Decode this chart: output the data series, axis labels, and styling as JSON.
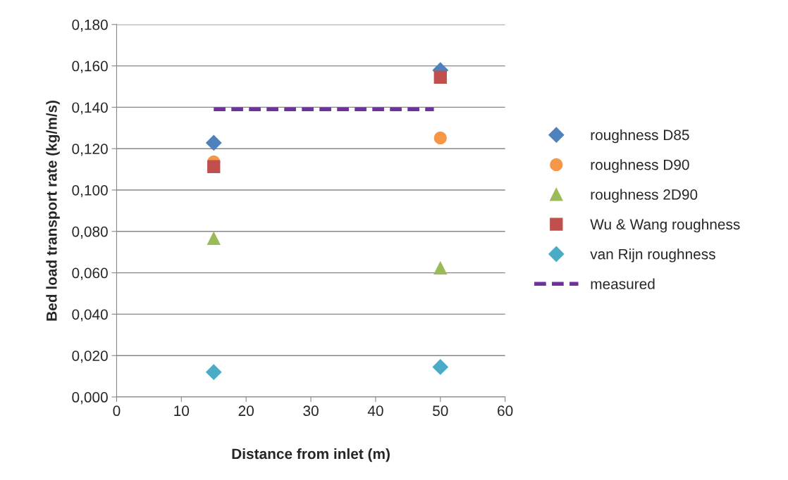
{
  "chart_data": {
    "type": "scatter",
    "xlabel": "Distance from inlet (m)",
    "ylabel": "Bed load transport rate (kg/m/s)",
    "xlim": [
      0,
      60
    ],
    "xticks": [
      0,
      10,
      20,
      30,
      40,
      50,
      60
    ],
    "ylim": [
      0,
      0.18
    ],
    "yticks": [
      {
        "value": 0,
        "label": "0,000"
      },
      {
        "value": 0.02,
        "label": "0,020"
      },
      {
        "value": 0.04,
        "label": "0,040"
      },
      {
        "value": 0.06,
        "label": "0,060"
      },
      {
        "value": 0.08,
        "label": "0,080"
      },
      {
        "value": 0.1,
        "label": "0,100"
      },
      {
        "value": 0.12,
        "label": "0,120"
      },
      {
        "value": 0.14,
        "label": "0,140"
      },
      {
        "value": 0.16,
        "label": "0,160"
      },
      {
        "value": 0.18,
        "label": "0,180"
      }
    ],
    "grid": "y",
    "legend": "right",
    "series": [
      {
        "name": "roughness D85",
        "color": "#4f81bd",
        "marker": "diamond",
        "x": [
          15,
          50
        ],
        "values": [
          0.1228,
          0.1579
        ]
      },
      {
        "name": "roughness D90",
        "color": "#f79646",
        "marker": "circle",
        "x": [
          15,
          50
        ],
        "values": [
          0.1136,
          0.1252
        ]
      },
      {
        "name": "roughness 2D90",
        "color": "#9bbb59",
        "marker": "triangle",
        "x": [
          15,
          50
        ],
        "values": [
          0.0766,
          0.0623
        ]
      },
      {
        "name": "Wu & Wang roughness",
        "color": "#c0504d",
        "marker": "square",
        "x": [
          15,
          50
        ],
        "values": [
          0.1113,
          0.1545
        ]
      },
      {
        "name": "van Rijn roughness",
        "color": "#4bacc6",
        "marker": "diamond",
        "x": [
          15,
          50
        ],
        "values": [
          0.012,
          0.0145
        ]
      },
      {
        "name": "measured",
        "color": "#7030a0",
        "type": "line",
        "line_style": "dashed",
        "marker": "none",
        "x": [
          15,
          49
        ],
        "values": [
          0.139,
          0.139
        ]
      }
    ]
  }
}
